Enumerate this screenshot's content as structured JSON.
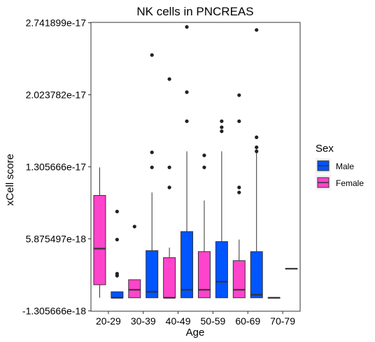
{
  "chart_data": {
    "type": "box",
    "title": "NK cells in PNCREAS",
    "xlabel": "Age",
    "ylabel": "xCell score",
    "ylim": [
      -1.305666e-18,
      2.741899e-17
    ],
    "yticks": [
      -1.305666e-18,
      5.875497e-18,
      1.305666e-17,
      2.023782e-17,
      2.741899e-17
    ],
    "ytick_labels": [
      "-1.305666e-18",
      "5.875497e-18",
      "1.305666e-17",
      "2.023782e-17",
      "2.741899e-17"
    ],
    "categories": [
      "20-29",
      "30-39",
      "40-49",
      "50-59",
      "60-69",
      "70-79"
    ],
    "legend": {
      "title": "Sex",
      "position": "right",
      "entries": [
        {
          "label": "Male",
          "color": "#0055FF"
        },
        {
          "label": "Female",
          "color": "#FF44CC"
        }
      ]
    },
    "series": [
      {
        "name": "Female",
        "color": "#FF44CC",
        "boxes": [
          {
            "category": "20-29",
            "min": 0.0,
            "q1": 1.3e-18,
            "median": 4.9e-18,
            "q3": 1.02e-17,
            "max": 1.3e-17,
            "outliers": []
          },
          {
            "category": "30-39",
            "min": 0.0,
            "q1": 0.0,
            "median": 8e-19,
            "q3": 1.8e-18,
            "max": 1.8e-18,
            "outliers": [
              7.1e-18
            ]
          },
          {
            "category": "40-49",
            "min": 0.0,
            "q1": 0.0,
            "median": 0.0,
            "q3": 4e-18,
            "max": 5e-18,
            "outliers": [
              1.3e-17,
              2.18e-17,
              1.1e-17
            ]
          },
          {
            "category": "50-59",
            "min": 0.0,
            "q1": 0.0,
            "median": 8e-19,
            "q3": 4.6e-18,
            "max": 9.7e-18,
            "outliers": [
              1.3e-17,
              1.42e-17
            ]
          },
          {
            "category": "60-69",
            "min": 0.0,
            "q1": 0.0,
            "median": 8e-19,
            "q3": 3.7e-18,
            "max": 5.8e-18,
            "outliers": [
              1.1e-17,
              1.05e-17,
              1.76e-17,
              2.02e-17
            ]
          },
          {
            "category": "70-79",
            "min": 0.0,
            "q1": 0.0,
            "median": 0.0,
            "q3": 0.0,
            "max": 0.0,
            "outliers": []
          }
        ]
      },
      {
        "name": "Male",
        "color": "#0055FF",
        "boxes": [
          {
            "category": "20-29",
            "min": 0.0,
            "q1": 0.0,
            "median": 0.0,
            "q3": 6e-19,
            "max": 6e-19,
            "outliers": [
              8.6e-18,
              5.8e-18,
              2.2e-18,
              2.4e-18
            ]
          },
          {
            "category": "30-39",
            "min": 0.0,
            "q1": 0.0,
            "median": 6e-19,
            "q3": 4.7e-18,
            "max": 1.05e-17,
            "outliers": [
              1.3e-17,
              1.45e-17,
              2.42e-17
            ]
          },
          {
            "category": "40-49",
            "min": 0.0,
            "q1": 0.0,
            "median": 8e-19,
            "q3": 6.6e-18,
            "max": 1.46e-17,
            "outliers": [
              1.76e-17,
              2.05e-17,
              2.7e-17
            ]
          },
          {
            "category": "50-59",
            "min": 0.0,
            "q1": 0.0,
            "median": 1.6e-18,
            "q3": 5.6e-18,
            "max": 1.46e-17,
            "outliers": [
              1.76e-17,
              1.7e-17,
              1.66e-17
            ]
          },
          {
            "category": "60-69",
            "min": 0.0,
            "q1": 0.0,
            "median": 3e-19,
            "q3": 4.6e-18,
            "max": 1.48e-17,
            "outliers": [
              1.46e-17,
              1.5e-17,
              1.6e-17,
              2.67e-17
            ]
          },
          {
            "category": "70-79",
            "min": 2.9e-18,
            "q1": 2.9e-18,
            "median": 2.9e-18,
            "q3": 2.9e-18,
            "max": 2.9e-18,
            "outliers": []
          }
        ]
      }
    ]
  }
}
